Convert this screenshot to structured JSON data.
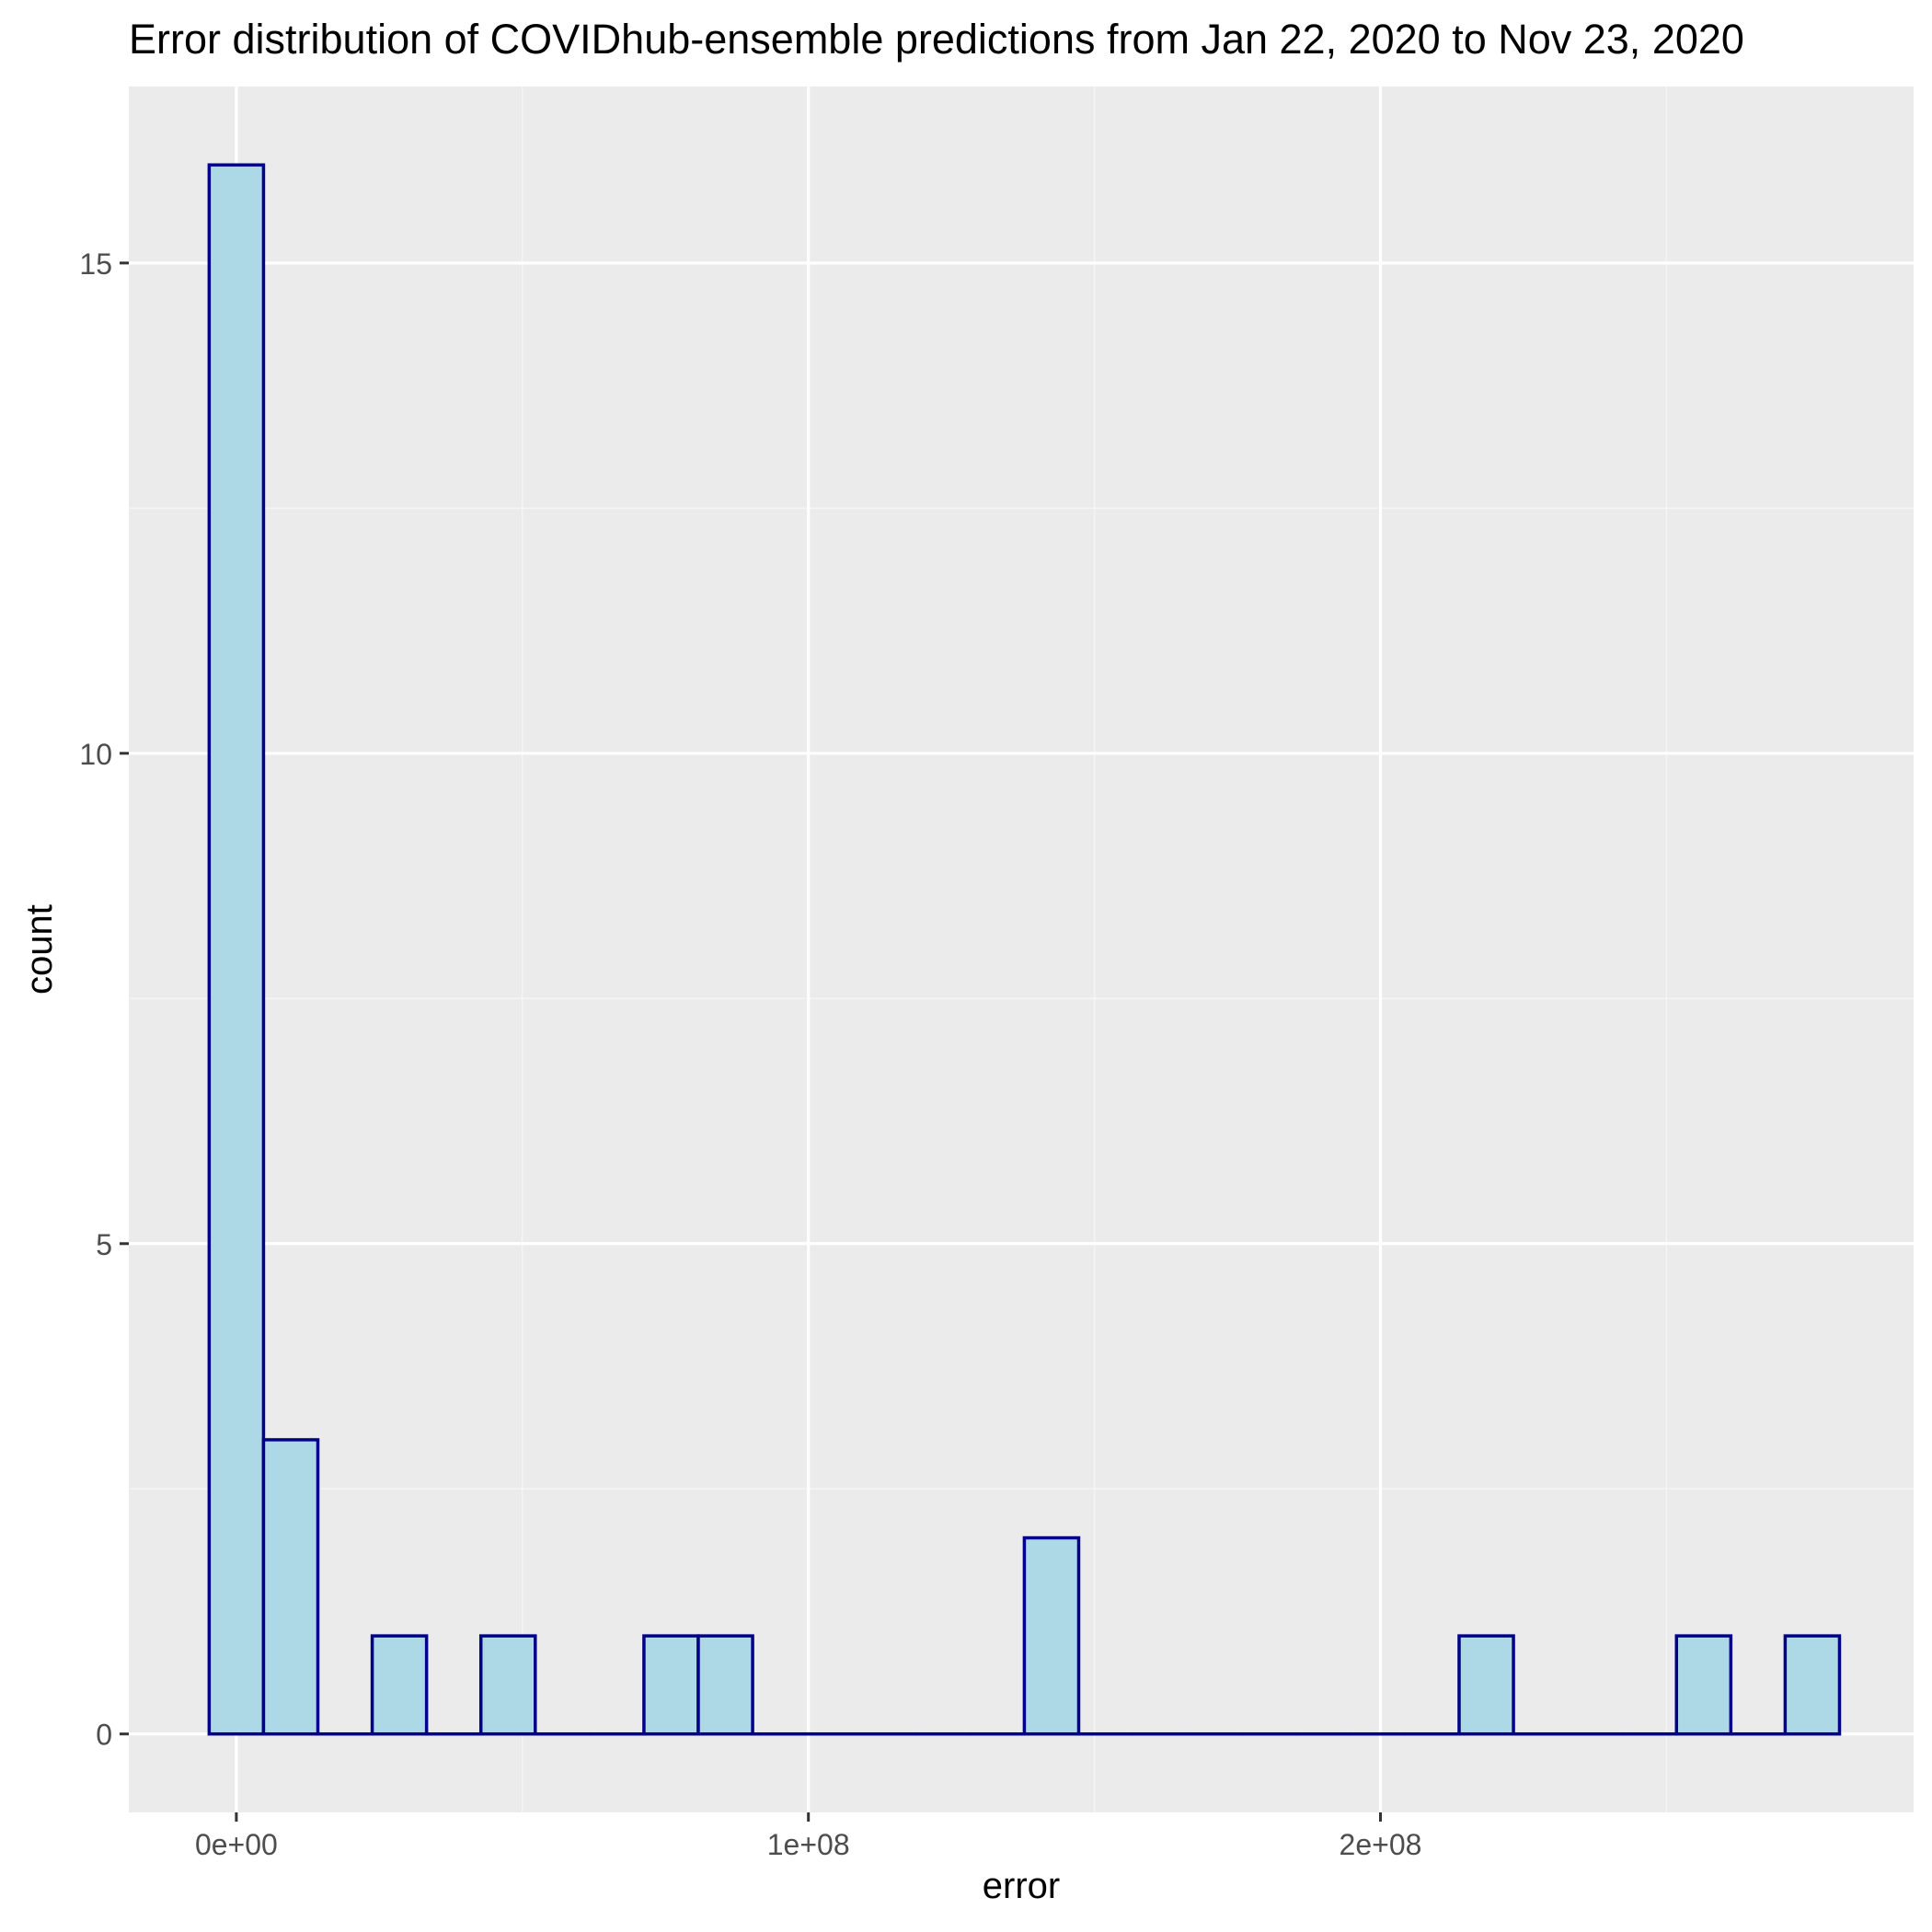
{
  "chart_data": {
    "type": "bar",
    "title": "Error distribution of COVIDhub-ensemble predictions from Jan 22, 2020 to Nov 23, 2020",
    "xlabel": "error",
    "ylabel": "count",
    "xlim": [
      -18800000,
      293200000
    ],
    "ylim": [
      -0.8,
      16.8
    ],
    "x_ticks": [
      {
        "value": 0,
        "label": "0e+00"
      },
      {
        "value": 100000000,
        "label": "1e+08"
      },
      {
        "value": 200000000,
        "label": "2e+08"
      }
    ],
    "x_minor_ticks": [
      50000000,
      150000000,
      250000000
    ],
    "y_ticks": [
      {
        "value": 0,
        "label": "0"
      },
      {
        "value": 5,
        "label": "5"
      },
      {
        "value": 10,
        "label": "10"
      },
      {
        "value": 15,
        "label": "15"
      }
    ],
    "y_minor_ticks": [
      2.5,
      7.5,
      12.5
    ],
    "bin_width": 9500000,
    "bins": [
      {
        "x": 0,
        "count": 16
      },
      {
        "x": 9500000,
        "count": 3
      },
      {
        "x": 19000000,
        "count": 0
      },
      {
        "x": 28500000,
        "count": 1
      },
      {
        "x": 38000000,
        "count": 0
      },
      {
        "x": 47500000,
        "count": 1
      },
      {
        "x": 57000000,
        "count": 0
      },
      {
        "x": 66500000,
        "count": 0
      },
      {
        "x": 76000000,
        "count": 1
      },
      {
        "x": 85500000,
        "count": 1
      },
      {
        "x": 95000000,
        "count": 0
      },
      {
        "x": 104500000,
        "count": 0
      },
      {
        "x": 114000000,
        "count": 0
      },
      {
        "x": 123500000,
        "count": 0
      },
      {
        "x": 133000000,
        "count": 0
      },
      {
        "x": 142500000,
        "count": 2
      },
      {
        "x": 152000000,
        "count": 0
      },
      {
        "x": 161500000,
        "count": 0
      },
      {
        "x": 171000000,
        "count": 0
      },
      {
        "x": 180500000,
        "count": 0
      },
      {
        "x": 190000000,
        "count": 0
      },
      {
        "x": 199500000,
        "count": 0
      },
      {
        "x": 209000000,
        "count": 0
      },
      {
        "x": 218500000,
        "count": 1
      },
      {
        "x": 228000000,
        "count": 0
      },
      {
        "x": 237500000,
        "count": 0
      },
      {
        "x": 247000000,
        "count": 0
      },
      {
        "x": 256500000,
        "count": 1
      },
      {
        "x": 266000000,
        "count": 0
      },
      {
        "x": 275500000,
        "count": 1
      }
    ],
    "grid": true,
    "legend": "none",
    "colors": {
      "panel_background": "#ebebeb",
      "grid_major": "#ffffff",
      "grid_minor": "#f5f5f5",
      "bar_fill": "#add8e6",
      "bar_outline": "#00008b",
      "axis_text": "#4d4d4d",
      "title_text": "#000000"
    }
  }
}
